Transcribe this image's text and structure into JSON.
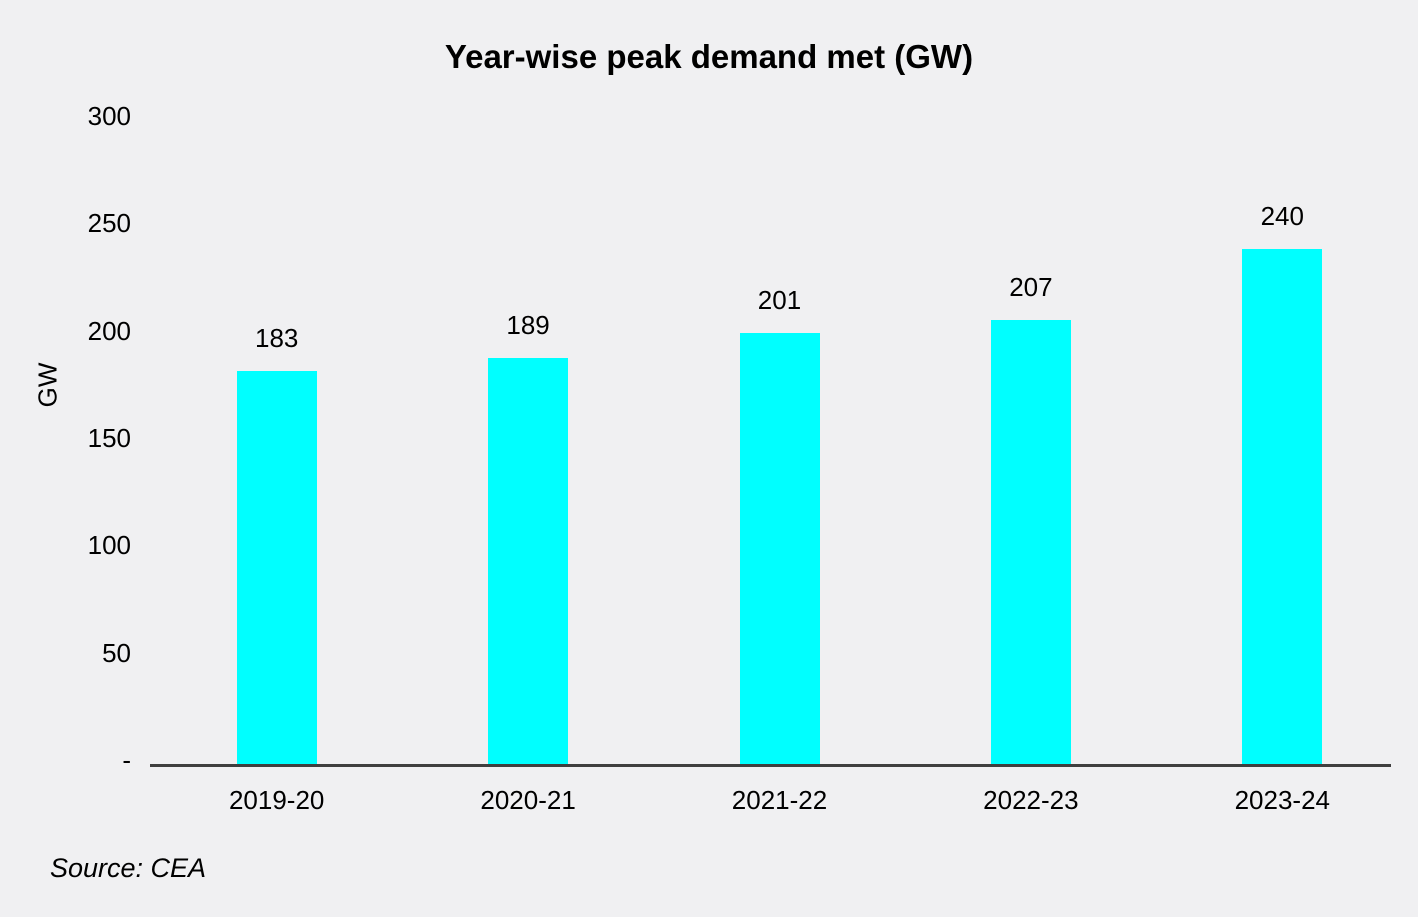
{
  "page": {
    "source_note": "Source: CEA"
  },
  "colors": {
    "bar": "#00FFFF",
    "background": "#F0F0F2",
    "axis_line": "#3F3F3F",
    "text": "#000000"
  },
  "chart_data": {
    "type": "bar",
    "title": "Year-wise peak demand met (GW)",
    "categories": [
      "2019-20",
      "2020-21",
      "2021-22",
      "2022-23",
      "2023-24"
    ],
    "values": [
      183,
      189,
      201,
      207,
      240
    ],
    "xlabel": "",
    "ylabel": "GW",
    "ylim": [
      0,
      300
    ],
    "yticks": [
      300,
      250,
      200,
      150,
      100,
      50,
      0
    ],
    "ytick_labels": [
      "300",
      "250",
      "200",
      "150",
      "100",
      "50",
      "-"
    ],
    "grid": false,
    "legend": "none",
    "data_labels": true,
    "bar_color": "#00FFFF",
    "source": "Source: CEA"
  }
}
